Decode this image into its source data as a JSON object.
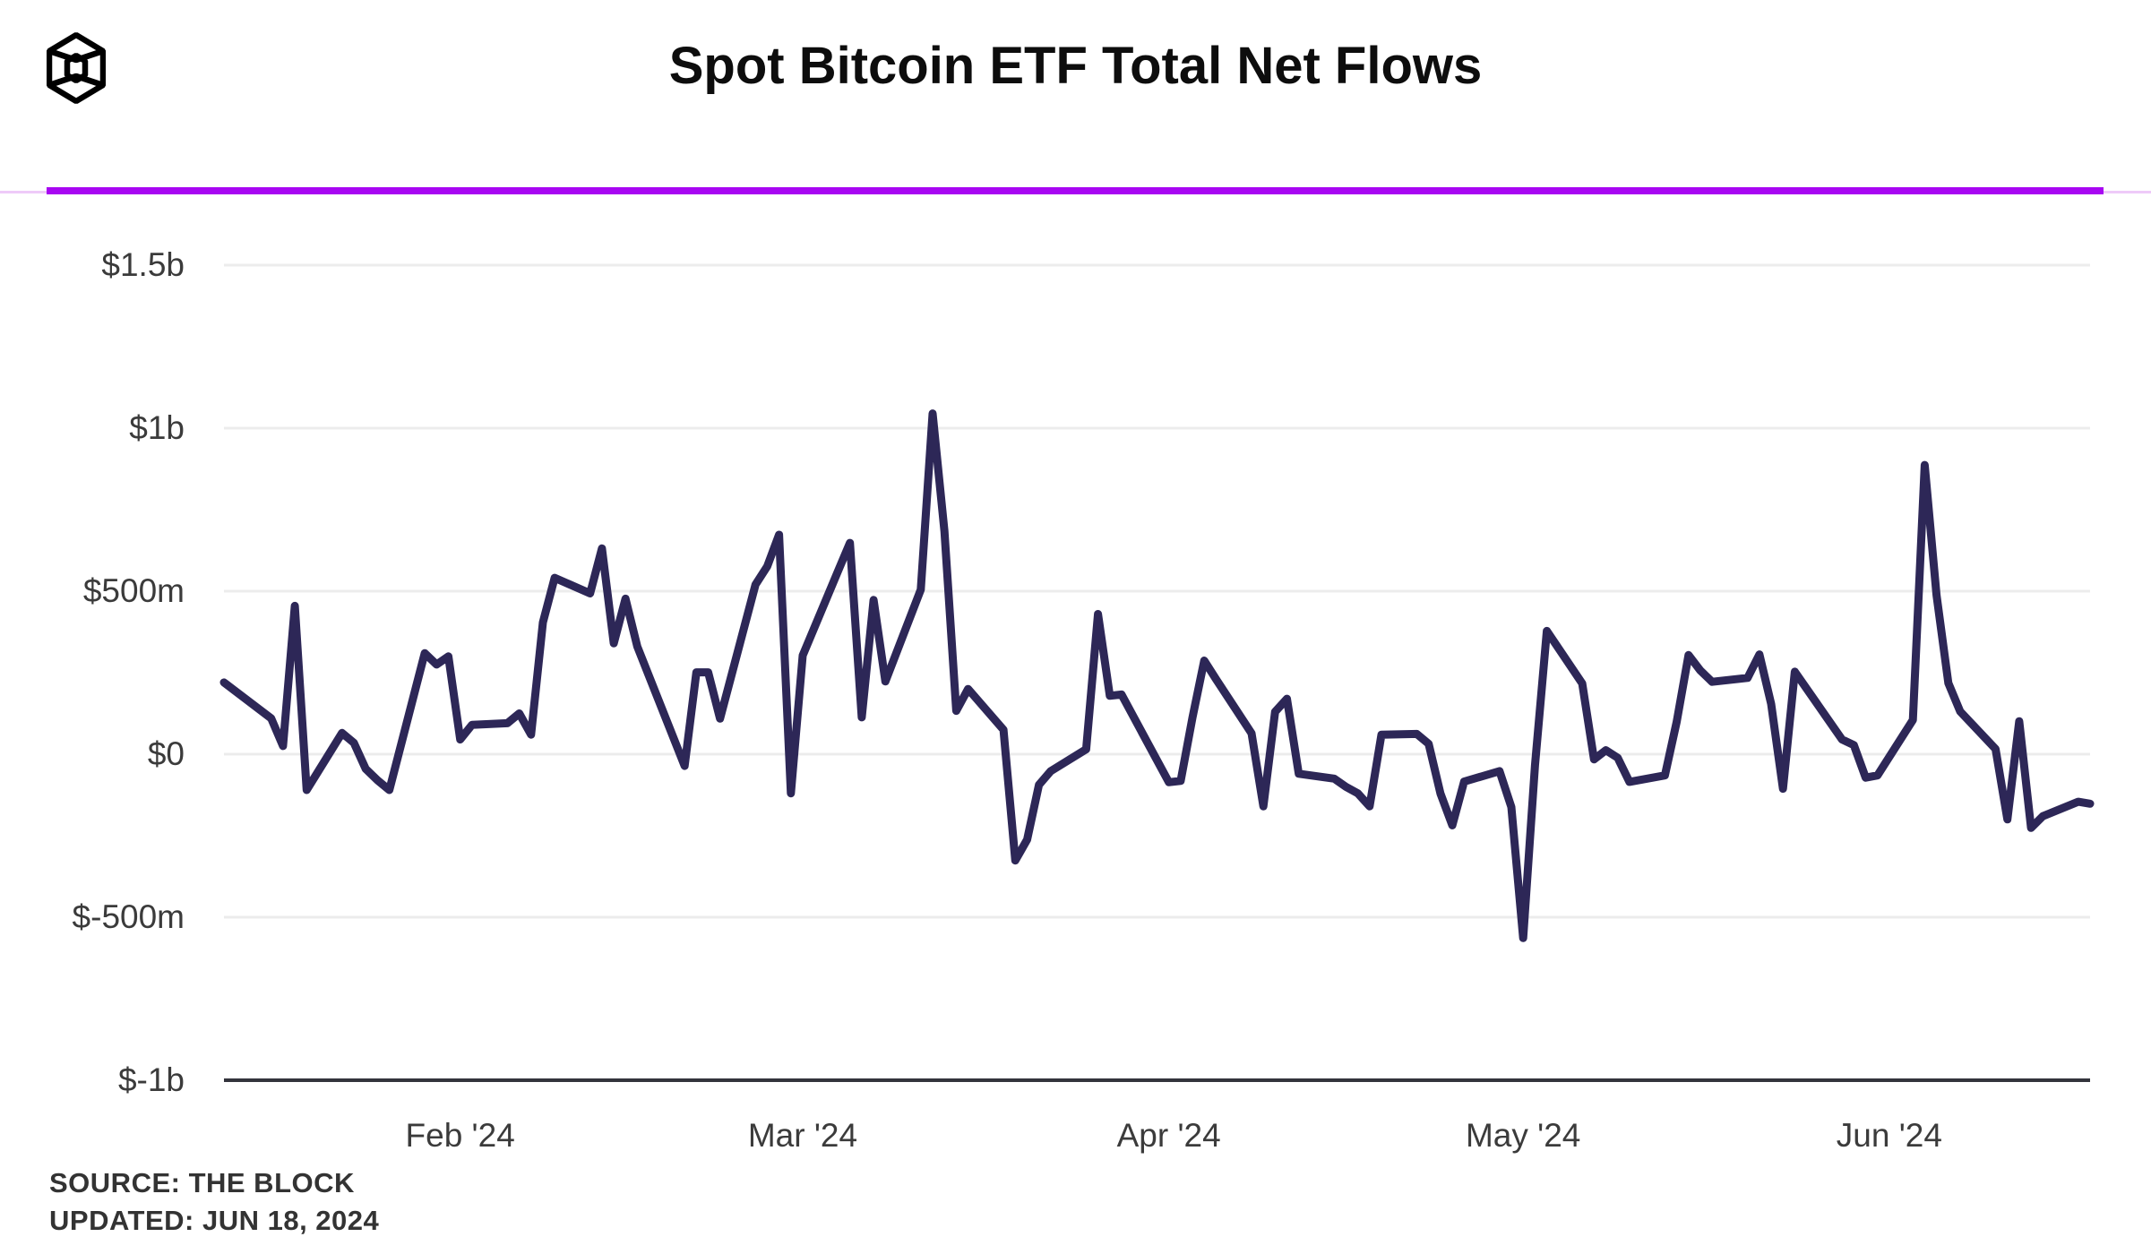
{
  "header": {
    "logo": "the-block-cube-logo",
    "title": "Spot Bitcoin ETF Total Net Flows",
    "accent_rule_color": "#a806f2",
    "accent_rule_light_color": "#eecaf8"
  },
  "footer": {
    "source": "SOURCE: THE BLOCK",
    "updated": "UPDATED: JUN 18, 2024"
  },
  "chart_data": {
    "type": "line",
    "title": "Spot Bitcoin ETF Total Net Flows",
    "xlabel": "",
    "ylabel": "",
    "unit": "$ millions (daily total net flow)",
    "ylim": [
      -1000,
      1500
    ],
    "x_start_date": "2024-01-12",
    "x_end_date": "2024-06-18",
    "grid": "horizontal",
    "legend": "none",
    "line_color": "#2d2757",
    "grid_color": "#ececec",
    "axis_color": "#33343c",
    "y_ticks": [
      {
        "label": "$1.5b",
        "value": 1500
      },
      {
        "label": "$1b",
        "value": 1000
      },
      {
        "label": "$500m",
        "value": 500
      },
      {
        "label": "$0",
        "value": 0
      },
      {
        "label": "$-500m",
        "value": -500
      },
      {
        "label": "$-1b",
        "value": -1000
      }
    ],
    "x_ticks": [
      {
        "label": "Feb '24",
        "date": "2024-02-01"
      },
      {
        "label": "Mar '24",
        "date": "2024-03-01"
      },
      {
        "label": "Apr '24",
        "date": "2024-04-01"
      },
      {
        "label": "May '24",
        "date": "2024-05-01"
      },
      {
        "label": "Jun '24",
        "date": "2024-06-01"
      }
    ],
    "series": [
      {
        "name": "Total Net Flows",
        "points": [
          {
            "date": "2024-01-12",
            "value": 220
          },
          {
            "date": "2024-01-16",
            "value": 110
          },
          {
            "date": "2024-01-17",
            "value": 25
          },
          {
            "date": "2024-01-18",
            "value": 455
          },
          {
            "date": "2024-01-19",
            "value": -110
          },
          {
            "date": "2024-01-22",
            "value": 65
          },
          {
            "date": "2024-01-23",
            "value": 35
          },
          {
            "date": "2024-01-24",
            "value": -45
          },
          {
            "date": "2024-01-25",
            "value": -80
          },
          {
            "date": "2024-01-26",
            "value": -110
          },
          {
            "date": "2024-01-29",
            "value": 310
          },
          {
            "date": "2024-01-30",
            "value": 275
          },
          {
            "date": "2024-01-31",
            "value": 300
          },
          {
            "date": "2024-02-01",
            "value": 45
          },
          {
            "date": "2024-02-02",
            "value": 90
          },
          {
            "date": "2024-02-05",
            "value": 95
          },
          {
            "date": "2024-02-06",
            "value": 125
          },
          {
            "date": "2024-02-07",
            "value": 60
          },
          {
            "date": "2024-02-08",
            "value": 404
          },
          {
            "date": "2024-02-09",
            "value": 541
          },
          {
            "date": "2024-02-12",
            "value": 493
          },
          {
            "date": "2024-02-13",
            "value": 631
          },
          {
            "date": "2024-02-14",
            "value": 340
          },
          {
            "date": "2024-02-15",
            "value": 477
          },
          {
            "date": "2024-02-16",
            "value": 330
          },
          {
            "date": "2024-02-20",
            "value": -36
          },
          {
            "date": "2024-02-21",
            "value": 251
          },
          {
            "date": "2024-02-22",
            "value": 251
          },
          {
            "date": "2024-02-23",
            "value": 109
          },
          {
            "date": "2024-02-26",
            "value": 520
          },
          {
            "date": "2024-02-27",
            "value": 576
          },
          {
            "date": "2024-02-28",
            "value": 673
          },
          {
            "date": "2024-02-29",
            "value": -120
          },
          {
            "date": "2024-03-01",
            "value": 303
          },
          {
            "date": "2024-03-04",
            "value": 562
          },
          {
            "date": "2024-03-05",
            "value": 648
          },
          {
            "date": "2024-03-06",
            "value": 113
          },
          {
            "date": "2024-03-07",
            "value": 473
          },
          {
            "date": "2024-03-08",
            "value": 223
          },
          {
            "date": "2024-03-11",
            "value": 505
          },
          {
            "date": "2024-03-12",
            "value": 1045
          },
          {
            "date": "2024-03-13",
            "value": 684
          },
          {
            "date": "2024-03-14",
            "value": 133
          },
          {
            "date": "2024-03-15",
            "value": 200
          },
          {
            "date": "2024-03-18",
            "value": 75
          },
          {
            "date": "2024-03-19",
            "value": -326
          },
          {
            "date": "2024-03-20",
            "value": -262
          },
          {
            "date": "2024-03-21",
            "value": -94
          },
          {
            "date": "2024-03-22",
            "value": -52
          },
          {
            "date": "2024-03-25",
            "value": 15
          },
          {
            "date": "2024-03-26",
            "value": 430
          },
          {
            "date": "2024-03-27",
            "value": 179
          },
          {
            "date": "2024-03-28",
            "value": 183
          },
          {
            "date": "2024-04-01",
            "value": -86
          },
          {
            "date": "2024-04-02",
            "value": -82
          },
          {
            "date": "2024-04-03",
            "value": 113
          },
          {
            "date": "2024-04-04",
            "value": 287
          },
          {
            "date": "2024-04-05",
            "value": 230
          },
          {
            "date": "2024-04-08",
            "value": 64
          },
          {
            "date": "2024-04-09",
            "value": -160
          },
          {
            "date": "2024-04-10",
            "value": 130
          },
          {
            "date": "2024-04-11",
            "value": 170
          },
          {
            "date": "2024-04-12",
            "value": -60
          },
          {
            "date": "2024-04-15",
            "value": -75
          },
          {
            "date": "2024-04-16",
            "value": -100
          },
          {
            "date": "2024-04-17",
            "value": -120
          },
          {
            "date": "2024-04-18",
            "value": -160
          },
          {
            "date": "2024-04-19",
            "value": 60
          },
          {
            "date": "2024-04-22",
            "value": 62
          },
          {
            "date": "2024-04-23",
            "value": 32
          },
          {
            "date": "2024-04-24",
            "value": -121
          },
          {
            "date": "2024-04-25",
            "value": -218
          },
          {
            "date": "2024-04-26",
            "value": -84
          },
          {
            "date": "2024-04-29",
            "value": -52
          },
          {
            "date": "2024-04-30",
            "value": -162
          },
          {
            "date": "2024-05-01",
            "value": -564
          },
          {
            "date": "2024-05-02",
            "value": -34
          },
          {
            "date": "2024-05-03",
            "value": 378
          },
          {
            "date": "2024-05-06",
            "value": 217
          },
          {
            "date": "2024-05-07",
            "value": -16
          },
          {
            "date": "2024-05-08",
            "value": 12
          },
          {
            "date": "2024-05-09",
            "value": -11
          },
          {
            "date": "2024-05-10",
            "value": -85
          },
          {
            "date": "2024-05-13",
            "value": -65
          },
          {
            "date": "2024-05-14",
            "value": 100
          },
          {
            "date": "2024-05-15",
            "value": 304
          },
          {
            "date": "2024-05-16",
            "value": 257
          },
          {
            "date": "2024-05-17",
            "value": 222
          },
          {
            "date": "2024-05-20",
            "value": 234
          },
          {
            "date": "2024-05-21",
            "value": 306
          },
          {
            "date": "2024-05-22",
            "value": 154
          },
          {
            "date": "2024-05-23",
            "value": -106
          },
          {
            "date": "2024-05-24",
            "value": 253
          },
          {
            "date": "2024-05-28",
            "value": 45
          },
          {
            "date": "2024-05-29",
            "value": 28
          },
          {
            "date": "2024-05-30",
            "value": -72
          },
          {
            "date": "2024-05-31",
            "value": -65
          },
          {
            "date": "2024-06-03",
            "value": 105
          },
          {
            "date": "2024-06-04",
            "value": 887
          },
          {
            "date": "2024-06-05",
            "value": 488
          },
          {
            "date": "2024-06-06",
            "value": 218
          },
          {
            "date": "2024-06-07",
            "value": 131
          },
          {
            "date": "2024-06-10",
            "value": 16
          },
          {
            "date": "2024-06-11",
            "value": -200
          },
          {
            "date": "2024-06-12",
            "value": 101
          },
          {
            "date": "2024-06-13",
            "value": -226
          },
          {
            "date": "2024-06-14",
            "value": -190
          },
          {
            "date": "2024-06-17",
            "value": -146
          },
          {
            "date": "2024-06-18",
            "value": -152
          }
        ]
      }
    ]
  }
}
